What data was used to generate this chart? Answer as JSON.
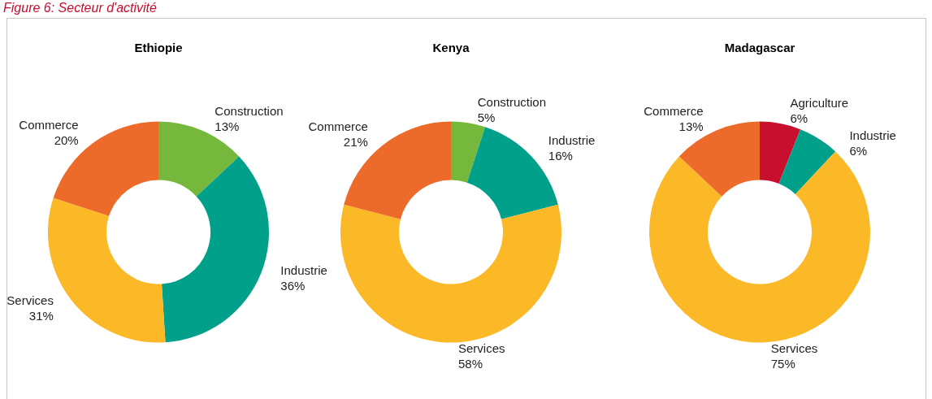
{
  "chart_data": [
    {
      "type": "other",
      "title": "Figure 6: Secteur d'activité"
    },
    {
      "type": "donut",
      "title": "Ethiopie",
      "categories": [
        "Construction",
        "Industrie",
        "Services",
        "Commerce"
      ],
      "values": [
        13,
        36,
        31,
        20
      ],
      "value_labels": [
        "13%",
        "36%",
        "31%",
        "20%"
      ],
      "colors": [
        "#76b83c",
        "#00a08a",
        "#fbb827",
        "#ec6a2a"
      ]
    },
    {
      "type": "donut",
      "title": "Kenya",
      "categories": [
        "Construction",
        "Industrie",
        "Services",
        "Commerce"
      ],
      "values": [
        5,
        16,
        58,
        21
      ],
      "value_labels": [
        "5%",
        "16%",
        "58%",
        "21%"
      ],
      "colors": [
        "#76b83c",
        "#00a08a",
        "#fbb827",
        "#ec6a2a"
      ]
    },
    {
      "type": "donut",
      "title": "Madagascar",
      "categories": [
        "Agriculture",
        "Industrie",
        "Services",
        "Commerce"
      ],
      "values": [
        6,
        6,
        75,
        13
      ],
      "value_labels": [
        "6%",
        "6%",
        "75%",
        "13%"
      ],
      "colors": [
        "#c8102e",
        "#00a08a",
        "#fbb827",
        "#ec6a2a"
      ]
    }
  ]
}
